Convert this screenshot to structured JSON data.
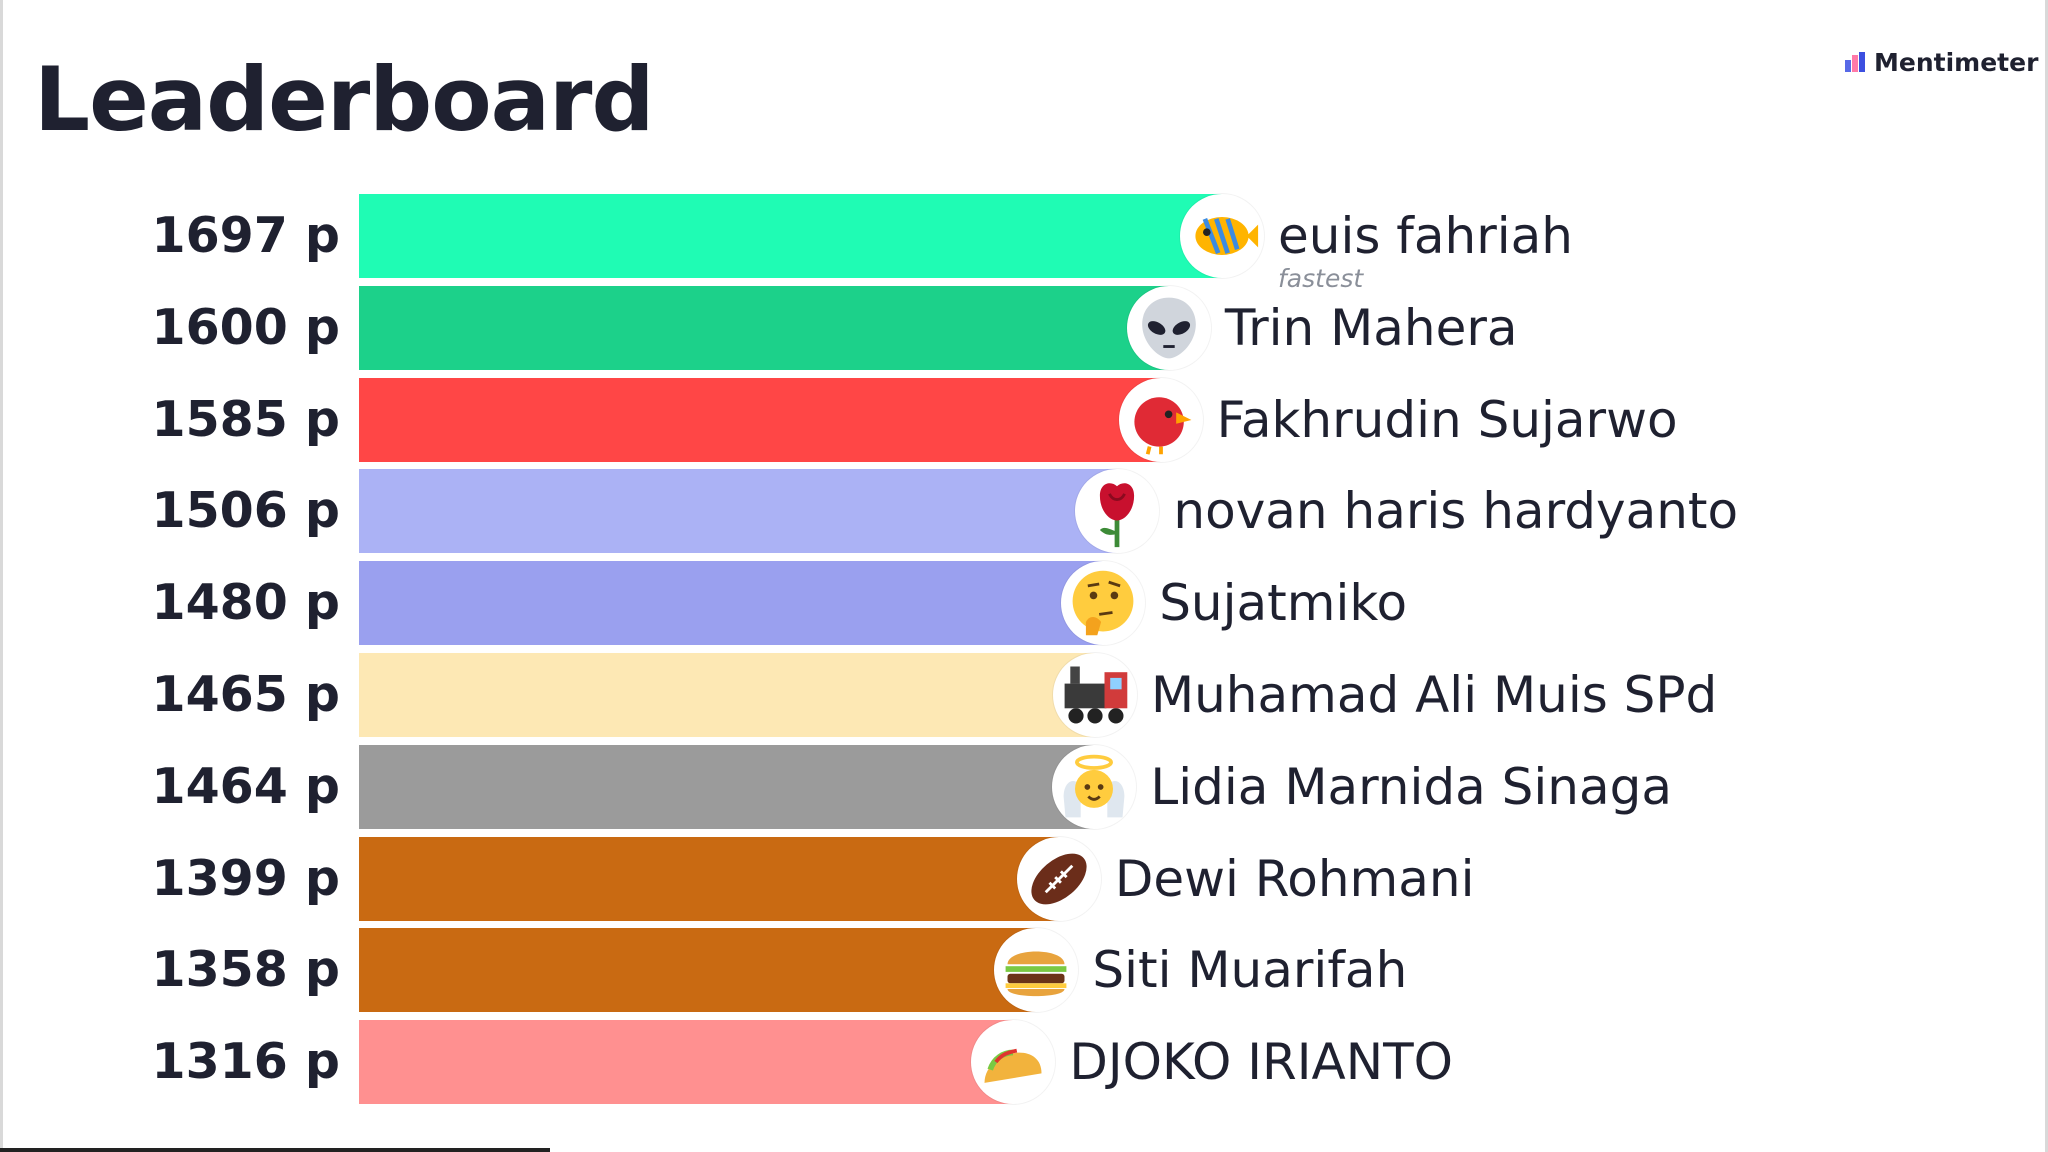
{
  "title": "Leaderboard",
  "brand": {
    "name": "Mentimeter"
  },
  "fastest_label": "fastest",
  "unit": "p",
  "entries": [
    {
      "score": "1697 p",
      "points": 1697,
      "name": "euis fahriah",
      "icon": "tropical-fish-icon",
      "color": "#1ffcb4"
    },
    {
      "score": "1600 p",
      "points": 1600,
      "name": "Trin Mahera",
      "icon": "alien-icon",
      "color": "#1cd18a"
    },
    {
      "score": "1585 p",
      "points": 1585,
      "name": "Fakhrudin Sujarwo",
      "icon": "red-bird-icon",
      "color": "#ff4646"
    },
    {
      "score": "1506 p",
      "points": 1506,
      "name": "novan haris hardyanto",
      "icon": "rose-icon",
      "color": "#abb2f5"
    },
    {
      "score": "1480 p",
      "points": 1480,
      "name": "Sujatmiko",
      "icon": "thinking-face-icon",
      "color": "#9aa0ef"
    },
    {
      "score": "1465 p",
      "points": 1465,
      "name": "Muhamad Ali Muis SPd",
      "icon": "locomotive-icon",
      "color": "#fde8b4"
    },
    {
      "score": "1464 p",
      "points": 1464,
      "name": "Lidia Marnida Sinaga",
      "icon": "angel-icon",
      "color": "#9b9b9b"
    },
    {
      "score": "1399 p",
      "points": 1399,
      "name": "Dewi Rohmani",
      "icon": "american-football-icon",
      "color": "#c96a12"
    },
    {
      "score": "1358 p",
      "points": 1358,
      "name": "Siti Muarifah",
      "icon": "hamburger-icon",
      "color": "#c96a12"
    },
    {
      "score": "1316 p",
      "points": 1316,
      "name": "DJOKO IRIANTO",
      "icon": "taco-icon",
      "color": "#ff9090"
    }
  ]
}
